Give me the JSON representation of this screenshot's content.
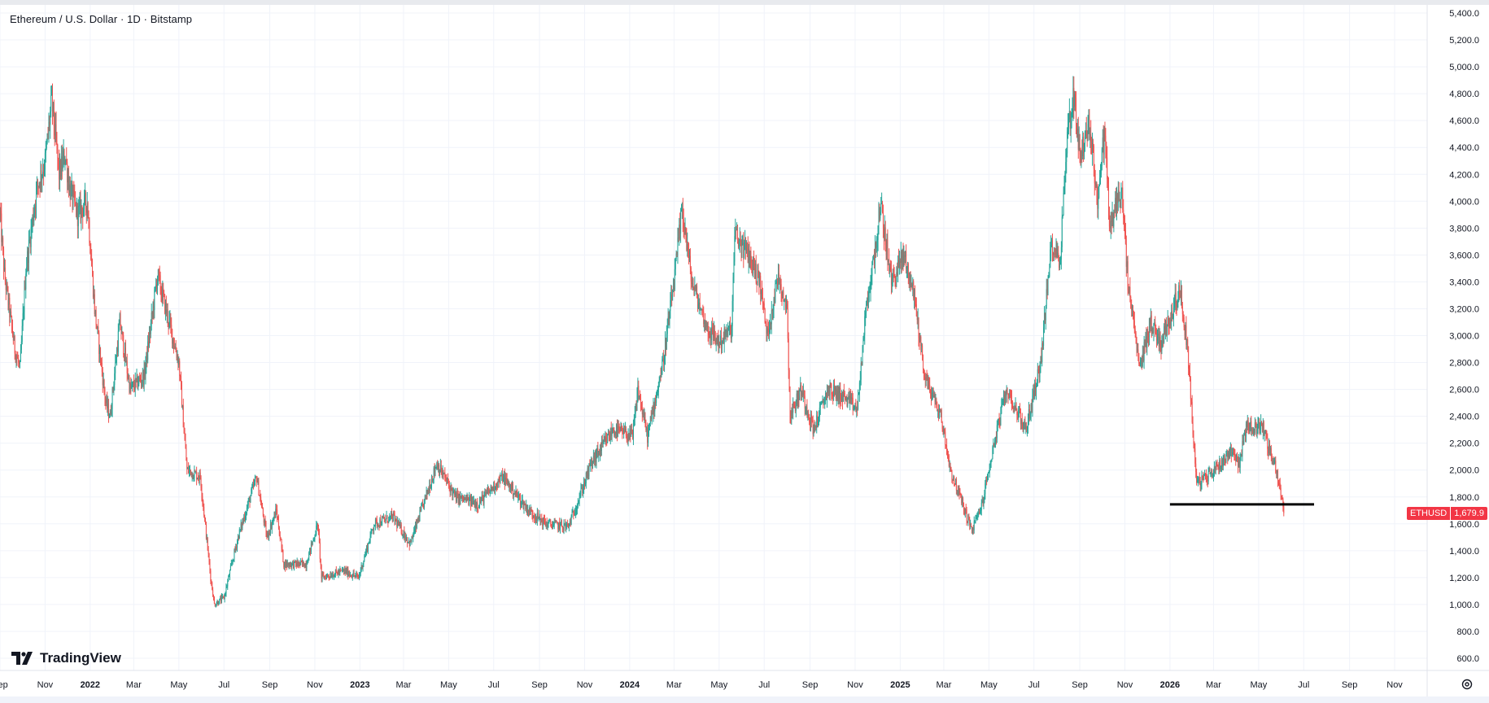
{
  "legend": {
    "title": "Ethereum / U.S. Dollar · 1D · Bitstamp"
  },
  "branding": {
    "logo_text": "TradingView"
  },
  "price_tag": {
    "symbol": "ETHUSD",
    "value": "1,679.9"
  },
  "colors": {
    "up": "#26a69a",
    "down": "#ef5350",
    "grid": "#f0f3fa",
    "axis": "#e0e3eb",
    "tag": "#f23645",
    "annotation": "#000000"
  },
  "icons": {
    "settings": "gear-icon",
    "logo": "tradingview-logo-icon"
  },
  "chart_data": {
    "type": "candlestick",
    "title": "Ethereum / U.S. Dollar · 1D · Bitstamp",
    "y_axis": {
      "range": [
        600,
        5400
      ],
      "ticks": [
        {
          "value": 600,
          "label": "600.0"
        },
        {
          "value": 800,
          "label": "800.0"
        },
        {
          "value": 1000,
          "label": "1,000.0"
        },
        {
          "value": 1200,
          "label": "1,200.0"
        },
        {
          "value": 1400,
          "label": "1,400.0"
        },
        {
          "value": 1600,
          "label": "1,600.0"
        },
        {
          "value": 1800,
          "label": "1,800.0"
        },
        {
          "value": 2000,
          "label": "2,000.0"
        },
        {
          "value": 2200,
          "label": "2,200.0"
        },
        {
          "value": 2400,
          "label": "2,400.0"
        },
        {
          "value": 2600,
          "label": "2,600.0"
        },
        {
          "value": 2800,
          "label": "2,800.0"
        },
        {
          "value": 3000,
          "label": "3,000.0"
        },
        {
          "value": 3200,
          "label": "3,200.0"
        },
        {
          "value": 3400,
          "label": "3,400.0"
        },
        {
          "value": 3600,
          "label": "3,600.0"
        },
        {
          "value": 3800,
          "label": "3,800.0"
        },
        {
          "value": 4000,
          "label": "4,000.0"
        },
        {
          "value": 4200,
          "label": "4,200.0"
        },
        {
          "value": 4400,
          "label": "4,400.0"
        },
        {
          "value": 4600,
          "label": "4,600.0"
        },
        {
          "value": 4800,
          "label": "4,800.0"
        },
        {
          "value": 5000,
          "label": "5,000.0"
        },
        {
          "value": 5200,
          "label": "5,200.0"
        },
        {
          "value": 5400,
          "label": "5,400.0"
        }
      ]
    },
    "x_axis": {
      "range": [
        "2021-09-01",
        "2026-12-15"
      ],
      "ticks": [
        {
          "date": "2021-09-01",
          "label": "Sep",
          "year": false
        },
        {
          "date": "2021-11-01",
          "label": "Nov",
          "year": false
        },
        {
          "date": "2022-01-01",
          "label": "2022",
          "year": true
        },
        {
          "date": "2022-03-01",
          "label": "Mar",
          "year": false
        },
        {
          "date": "2022-05-01",
          "label": "May",
          "year": false
        },
        {
          "date": "2022-07-01",
          "label": "Jul",
          "year": false
        },
        {
          "date": "2022-09-01",
          "label": "Sep",
          "year": false
        },
        {
          "date": "2022-11-01",
          "label": "Nov",
          "year": false
        },
        {
          "date": "2023-01-01",
          "label": "2023",
          "year": true
        },
        {
          "date": "2023-03-01",
          "label": "Mar",
          "year": false
        },
        {
          "date": "2023-05-01",
          "label": "May",
          "year": false
        },
        {
          "date": "2023-07-01",
          "label": "Jul",
          "year": false
        },
        {
          "date": "2023-09-01",
          "label": "Sep",
          "year": false
        },
        {
          "date": "2023-11-01",
          "label": "Nov",
          "year": false
        },
        {
          "date": "2024-01-01",
          "label": "2024",
          "year": true
        },
        {
          "date": "2024-03-01",
          "label": "Mar",
          "year": false
        },
        {
          "date": "2024-05-01",
          "label": "May",
          "year": false
        },
        {
          "date": "2024-07-01",
          "label": "Jul",
          "year": false
        },
        {
          "date": "2024-09-01",
          "label": "Sep",
          "year": false
        },
        {
          "date": "2024-11-01",
          "label": "Nov",
          "year": false
        },
        {
          "date": "2025-01-01",
          "label": "2025",
          "year": true
        },
        {
          "date": "2025-03-01",
          "label": "Mar",
          "year": false
        },
        {
          "date": "2025-05-01",
          "label": "May",
          "year": false
        },
        {
          "date": "2025-07-01",
          "label": "Jul",
          "year": false
        },
        {
          "date": "2025-09-01",
          "label": "Sep",
          "year": false
        },
        {
          "date": "2025-11-01",
          "label": "Nov",
          "year": false
        },
        {
          "date": "2026-01-01",
          "label": "2026",
          "year": true
        },
        {
          "date": "2026-03-01",
          "label": "Mar",
          "year": false
        },
        {
          "date": "2026-05-01",
          "label": "May",
          "year": false
        },
        {
          "date": "2026-07-01",
          "label": "Jul",
          "year": false
        },
        {
          "date": "2026-09-01",
          "label": "Sep",
          "year": false
        },
        {
          "date": "2026-11-01",
          "label": "Nov",
          "year": false
        }
      ]
    },
    "grid": true,
    "last_price": 1679.9,
    "horizontal_line": {
      "price": 1745,
      "from": "2026-01-01",
      "to": "2026-07-15"
    },
    "close_path": [
      {
        "d": "2021-09-01",
        "p": 3900
      },
      {
        "d": "2021-09-07",
        "p": 3450
      },
      {
        "d": "2021-09-21",
        "p": 2900
      },
      {
        "d": "2021-09-28",
        "p": 2750
      },
      {
        "d": "2021-10-06",
        "p": 3500
      },
      {
        "d": "2021-10-21",
        "p": 4100
      },
      {
        "d": "2021-11-01",
        "p": 4300
      },
      {
        "d": "2021-11-10",
        "p": 4750
      },
      {
        "d": "2021-11-20",
        "p": 4200
      },
      {
        "d": "2021-11-28",
        "p": 4350
      },
      {
        "d": "2021-12-04",
        "p": 4100
      },
      {
        "d": "2021-12-15",
        "p": 3900
      },
      {
        "d": "2021-12-28",
        "p": 4000
      },
      {
        "d": "2022-01-07",
        "p": 3200
      },
      {
        "d": "2022-01-22",
        "p": 2500
      },
      {
        "d": "2022-01-28",
        "p": 2400
      },
      {
        "d": "2022-02-10",
        "p": 3100
      },
      {
        "d": "2022-02-24",
        "p": 2600
      },
      {
        "d": "2022-03-15",
        "p": 2700
      },
      {
        "d": "2022-04-02",
        "p": 3450
      },
      {
        "d": "2022-04-20",
        "p": 3050
      },
      {
        "d": "2022-05-01",
        "p": 2800
      },
      {
        "d": "2022-05-12",
        "p": 2000
      },
      {
        "d": "2022-05-30",
        "p": 1950
      },
      {
        "d": "2022-06-13",
        "p": 1200
      },
      {
        "d": "2022-06-18",
        "p": 1000
      },
      {
        "d": "2022-07-01",
        "p": 1050
      },
      {
        "d": "2022-07-20",
        "p": 1500
      },
      {
        "d": "2022-08-14",
        "p": 1950
      },
      {
        "d": "2022-08-28",
        "p": 1500
      },
      {
        "d": "2022-09-10",
        "p": 1700
      },
      {
        "d": "2022-09-20",
        "p": 1300
      },
      {
        "d": "2022-10-20",
        "p": 1300
      },
      {
        "d": "2022-11-05",
        "p": 1600
      },
      {
        "d": "2022-11-10",
        "p": 1200
      },
      {
        "d": "2022-12-10",
        "p": 1250
      },
      {
        "d": "2022-12-30",
        "p": 1200
      },
      {
        "d": "2023-01-20",
        "p": 1600
      },
      {
        "d": "2023-02-15",
        "p": 1650
      },
      {
        "d": "2023-03-10",
        "p": 1450
      },
      {
        "d": "2023-04-15",
        "p": 2050
      },
      {
        "d": "2023-05-10",
        "p": 1800
      },
      {
        "d": "2023-06-10",
        "p": 1750
      },
      {
        "d": "2023-07-13",
        "p": 1950
      },
      {
        "d": "2023-08-17",
        "p": 1700
      },
      {
        "d": "2023-09-10",
        "p": 1600
      },
      {
        "d": "2023-10-10",
        "p": 1580
      },
      {
        "d": "2023-10-25",
        "p": 1800
      },
      {
        "d": "2023-11-10",
        "p": 2050
      },
      {
        "d": "2023-12-10",
        "p": 2300
      },
      {
        "d": "2024-01-05",
        "p": 2250
      },
      {
        "d": "2024-01-12",
        "p": 2600
      },
      {
        "d": "2024-01-25",
        "p": 2250
      },
      {
        "d": "2024-02-15",
        "p": 2800
      },
      {
        "d": "2024-03-01",
        "p": 3400
      },
      {
        "d": "2024-03-12",
        "p": 3950
      },
      {
        "d": "2024-03-25",
        "p": 3400
      },
      {
        "d": "2024-04-15",
        "p": 3050
      },
      {
        "d": "2024-05-01",
        "p": 2950
      },
      {
        "d": "2024-05-18",
        "p": 3050
      },
      {
        "d": "2024-05-22",
        "p": 3750
      },
      {
        "d": "2024-06-10",
        "p": 3600
      },
      {
        "d": "2024-06-25",
        "p": 3400
      },
      {
        "d": "2024-07-05",
        "p": 3000
      },
      {
        "d": "2024-07-20",
        "p": 3450
      },
      {
        "d": "2024-08-01",
        "p": 3200
      },
      {
        "d": "2024-08-05",
        "p": 2400
      },
      {
        "d": "2024-08-20",
        "p": 2600
      },
      {
        "d": "2024-09-06",
        "p": 2300
      },
      {
        "d": "2024-09-25",
        "p": 2600
      },
      {
        "d": "2024-10-15",
        "p": 2550
      },
      {
        "d": "2024-11-04",
        "p": 2450
      },
      {
        "d": "2024-11-15",
        "p": 3150
      },
      {
        "d": "2024-12-06",
        "p": 3950
      },
      {
        "d": "2024-12-20",
        "p": 3400
      },
      {
        "d": "2025-01-06",
        "p": 3600
      },
      {
        "d": "2025-01-20",
        "p": 3300
      },
      {
        "d": "2025-02-03",
        "p": 2700
      },
      {
        "d": "2025-02-25",
        "p": 2400
      },
      {
        "d": "2025-03-10",
        "p": 2000
      },
      {
        "d": "2025-04-08",
        "p": 1550
      },
      {
        "d": "2025-04-22",
        "p": 1750
      },
      {
        "d": "2025-05-08",
        "p": 2200
      },
      {
        "d": "2025-05-25",
        "p": 2600
      },
      {
        "d": "2025-06-20",
        "p": 2300
      },
      {
        "d": "2025-07-10",
        "p": 2800
      },
      {
        "d": "2025-07-25",
        "p": 3700
      },
      {
        "d": "2025-08-05",
        "p": 3550
      },
      {
        "d": "2025-08-15",
        "p": 4500
      },
      {
        "d": "2025-08-24",
        "p": 4800
      },
      {
        "d": "2025-09-01",
        "p": 4350
      },
      {
        "d": "2025-09-15",
        "p": 4550
      },
      {
        "d": "2025-09-25",
        "p": 4000
      },
      {
        "d": "2025-10-05",
        "p": 4550
      },
      {
        "d": "2025-10-11",
        "p": 3800
      },
      {
        "d": "2025-10-27",
        "p": 4100
      },
      {
        "d": "2025-11-05",
        "p": 3400
      },
      {
        "d": "2025-11-21",
        "p": 2750
      },
      {
        "d": "2025-12-05",
        "p": 3100
      },
      {
        "d": "2025-12-20",
        "p": 2950
      },
      {
        "d": "2026-01-05",
        "p": 3200
      },
      {
        "d": "2026-01-14",
        "p": 3350
      },
      {
        "d": "2026-01-25",
        "p": 2900
      },
      {
        "d": "2026-02-01",
        "p": 2300
      },
      {
        "d": "2026-02-06",
        "p": 1900
      },
      {
        "d": "2026-02-20",
        "p": 1950
      },
      {
        "d": "2026-03-10",
        "p": 2050
      },
      {
        "d": "2026-03-25",
        "p": 2150
      },
      {
        "d": "2026-04-05",
        "p": 2050
      },
      {
        "d": "2026-04-15",
        "p": 2350
      },
      {
        "d": "2026-04-25",
        "p": 2300
      },
      {
        "d": "2026-05-05",
        "p": 2350
      },
      {
        "d": "2026-05-15",
        "p": 2150
      },
      {
        "d": "2026-05-25",
        "p": 2000
      },
      {
        "d": "2026-06-01",
        "p": 1800
      },
      {
        "d": "2026-06-04",
        "p": 1679.9
      }
    ]
  }
}
